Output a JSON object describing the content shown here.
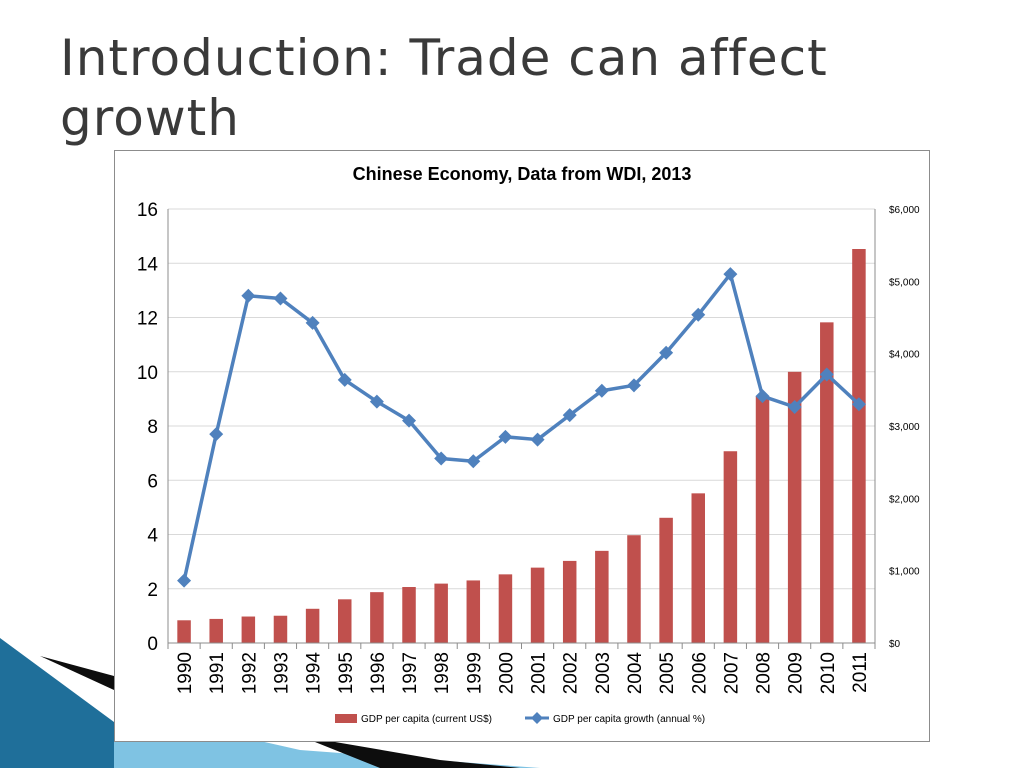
{
  "slide": {
    "title_line1": "Introduction: Trade can affect",
    "title_line2": "growth"
  },
  "colors": {
    "bar": "#c0504d",
    "line": "#4f81bd",
    "grid": "#d9d9d9",
    "decor_dark": "#0d0d0d",
    "decor_blue": "#1f6f9a",
    "decor_light": "#7fc3e3"
  },
  "chart_data": {
    "type": "bar",
    "title": "Chinese Economy, Data from WDI, 2013",
    "categories": [
      "1990",
      "1991",
      "1992",
      "1993",
      "1994",
      "1995",
      "1996",
      "1997",
      "1998",
      "1999",
      "2000",
      "2001",
      "2002",
      "2003",
      "2004",
      "2005",
      "2006",
      "2007",
      "2008",
      "2009",
      "2010",
      "2011"
    ],
    "series": [
      {
        "name": "GDP per capita (current US$)",
        "type": "bar",
        "axis": "right",
        "values": [
          314,
          333,
          366,
          377,
          473,
          604,
          703,
          774,
          821,
          865,
          949,
          1042,
          1135,
          1274,
          1490,
          1731,
          2069,
          2651,
          3414,
          3749,
          4433,
          5447
        ]
      },
      {
        "name": "GDP per capita growth (annual %)",
        "type": "line",
        "axis": "left",
        "values": [
          2.3,
          7.7,
          12.8,
          12.7,
          11.8,
          9.7,
          8.9,
          8.2,
          6.8,
          6.7,
          7.6,
          7.5,
          8.4,
          9.3,
          9.5,
          10.7,
          12.1,
          13.6,
          9.1,
          8.7,
          9.9,
          8.8
        ]
      }
    ],
    "y_left": {
      "ylim": [
        0,
        16
      ],
      "ticks": [
        "0",
        "2",
        "4",
        "6",
        "8",
        "10",
        "12",
        "14",
        "16"
      ]
    },
    "y_right": {
      "ylim": [
        0,
        6000
      ],
      "ticks": [
        "$0",
        "$1,000",
        "$2,000",
        "$3,000",
        "$4,000",
        "$5,000",
        "$6,000"
      ]
    },
    "grid": true,
    "legend_position": "bottom"
  }
}
